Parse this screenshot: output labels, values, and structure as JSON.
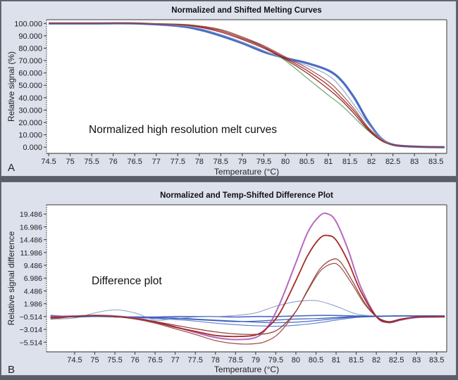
{
  "chart_data": [
    {
      "panel_label": "A",
      "type": "line",
      "title": "Normalized and Shifted Melting Curves",
      "xlabel": "Temperature (°C)",
      "ylabel": "Relative signal (%)",
      "annotation": "Normalized high resolution melt curves",
      "xlim": [
        74.45,
        83.75
      ],
      "ylim": [
        -5,
        103
      ],
      "x_ticks": [
        "74.5",
        "75",
        "75.5",
        "76",
        "76.5",
        "77",
        "77.5",
        "78",
        "78.5",
        "79",
        "79.5",
        "80",
        "80.5",
        "81",
        "81.5",
        "82",
        "82.5",
        "83",
        "83.5"
      ],
      "y_ticks": [
        "0.000",
        "10.000",
        "20.000",
        "30.000",
        "40.000",
        "50.000",
        "60.000",
        "70.000",
        "80.000",
        "90.000",
        "100.000"
      ],
      "grid": false,
      "series": [
        {
          "name": "blue group",
          "color": "#3a5fbf",
          "width": 3.2,
          "x": [
            74.5,
            75.5,
            76.5,
            77.5,
            78,
            78.5,
            79,
            79.5,
            80,
            80.5,
            81,
            81.3,
            81.6,
            81.9,
            82.2,
            82.5,
            83,
            83.7
          ],
          "y": [
            100,
            100,
            100,
            98,
            95,
            90,
            84,
            77,
            72,
            68,
            62,
            54,
            40,
            22,
            8,
            2,
            0.5,
            0
          ]
        },
        {
          "name": "light blue",
          "color": "#8fa0cc",
          "width": 1.2,
          "x": [
            74.5,
            75.5,
            76.5,
            77.5,
            78,
            78.5,
            79,
            79.5,
            80,
            80.5,
            81,
            81.3,
            81.6,
            81.9,
            82.2,
            82.5,
            83,
            83.7
          ],
          "y": [
            100,
            100,
            100,
            98.5,
            96,
            91,
            85,
            78,
            71,
            66,
            58,
            48,
            34,
            20,
            8,
            2,
            0.5,
            0
          ]
        },
        {
          "name": "green",
          "color": "#5aa05a",
          "width": 1.2,
          "x": [
            74.5,
            75.5,
            76.5,
            77.5,
            78,
            78.5,
            79,
            79.5,
            80,
            80.5,
            81,
            81.3,
            81.6,
            81.9,
            82.2,
            82.5,
            83,
            83.7
          ],
          "y": [
            100,
            100,
            100,
            99.5,
            98,
            95,
            89,
            81,
            70,
            56,
            42,
            34,
            24,
            14,
            6,
            2,
            0.5,
            0
          ]
        },
        {
          "name": "dark red 1",
          "color": "#8b1a1a",
          "width": 1.3,
          "x": [
            74.5,
            75.5,
            76.5,
            77.5,
            78,
            78.5,
            79,
            79.5,
            80,
            80.5,
            81,
            81.3,
            81.6,
            81.9,
            82.2,
            82.5,
            83,
            83.7
          ],
          "y": [
            100,
            100,
            100,
            99,
            97,
            93,
            87,
            80,
            71,
            60,
            47,
            38,
            27,
            15,
            6,
            2,
            0.5,
            0
          ]
        },
        {
          "name": "dark red 2",
          "color": "#a02020",
          "width": 1.3,
          "x": [
            74.5,
            75.5,
            76.5,
            77.5,
            78,
            78.5,
            79,
            79.5,
            80,
            80.5,
            81,
            81.3,
            81.6,
            81.9,
            82.2,
            82.5,
            83,
            83.7
          ],
          "y": [
            100,
            100,
            100,
            99,
            97.5,
            94,
            88,
            81,
            72,
            62,
            50,
            40,
            29,
            16,
            6,
            2,
            0.5,
            0
          ]
        },
        {
          "name": "brown red",
          "color": "#9a4a40",
          "width": 1.2,
          "x": [
            74.5,
            75.5,
            76.5,
            77.5,
            78,
            78.5,
            79,
            79.5,
            80,
            80.5,
            81,
            81.3,
            81.6,
            81.9,
            82.2,
            82.5,
            83,
            83.7
          ],
          "y": [
            100,
            100,
            100,
            99.3,
            98,
            95,
            89,
            82,
            73,
            64,
            53,
            43,
            31,
            17,
            7,
            2,
            0.5,
            0
          ]
        }
      ]
    },
    {
      "panel_label": "B",
      "type": "line",
      "title": "Normalized and Temp-Shifted Difference Plot",
      "xlabel": "Temperature (°C)",
      "ylabel": "Relative signal difference",
      "annotation": "Difference plot",
      "xlim": [
        73.8,
        83.75
      ],
      "ylim": [
        -7.4,
        21.3
      ],
      "x_ticks": [
        "74.5",
        "75",
        "75.5",
        "76",
        "76.5",
        "77",
        "77.5",
        "78",
        "78.5",
        "79",
        "79.5",
        "80",
        "80.5",
        "81",
        "81.5",
        "82",
        "82.5",
        "83",
        "83.5"
      ],
      "y_ticks": [
        "-5.514",
        "-3.014",
        "-0.514",
        "1.986",
        "4.486",
        "6.986",
        "9.486",
        "11.986",
        "14.486",
        "16.986",
        "19.486"
      ],
      "grid": false,
      "series": [
        {
          "name": "blue 1",
          "color": "#3a5fbf",
          "width": 1.6,
          "x": [
            73.9,
            74.5,
            75,
            75.5,
            76,
            76.5,
            77,
            77.5,
            78,
            78.5,
            79,
            79.5,
            80,
            80.5,
            81,
            81.5,
            82,
            82.5,
            83,
            83.7
          ],
          "y": [
            -0.3,
            -0.5,
            -0.3,
            -0.5,
            -0.6,
            -0.6,
            -0.5,
            -0.5,
            -0.5,
            -0.6,
            -0.5,
            -0.5,
            -0.4,
            -0.3,
            -0.3,
            -0.4,
            -0.4,
            -0.4,
            -0.4,
            -0.4
          ]
        },
        {
          "name": "blue 2",
          "color": "#4a6cc8",
          "width": 1.4,
          "x": [
            73.9,
            74.5,
            75,
            75.5,
            76,
            76.5,
            77,
            77.5,
            78,
            78.5,
            79,
            79.5,
            80,
            80.5,
            81,
            81.5,
            82,
            82.5,
            83,
            83.7
          ],
          "y": [
            -0.4,
            -0.5,
            -0.4,
            -0.6,
            -0.7,
            -0.8,
            -0.8,
            -1.0,
            -1.2,
            -1.4,
            -1.6,
            -1.7,
            -1.6,
            -1.3,
            -0.9,
            -0.6,
            -0.5,
            -0.4,
            -0.4,
            -0.4
          ]
        },
        {
          "name": "blue 3",
          "color": "#5a7ad0",
          "width": 1.2,
          "x": [
            73.9,
            74.5,
            75,
            75.5,
            76,
            76.5,
            77,
            77.5,
            78,
            78.5,
            79,
            79.5,
            80,
            80.5,
            81,
            81.5,
            82,
            82.5,
            83,
            83.7
          ],
          "y": [
            -0.5,
            -0.5,
            -0.5,
            -0.6,
            -0.7,
            -0.9,
            -1.1,
            -1.4,
            -1.8,
            -2.1,
            -2.3,
            -2.4,
            -2.2,
            -1.8,
            -1.2,
            -0.7,
            -0.5,
            -0.4,
            -0.4,
            -0.4
          ]
        },
        {
          "name": "grey blue hump",
          "color": "#8fa0cc",
          "width": 1.2,
          "x": [
            73.9,
            74.5,
            75,
            75.5,
            76,
            76.5,
            77,
            77.5,
            78,
            78.5,
            79,
            79.5,
            80,
            80.5,
            81,
            81.5,
            82,
            82.5,
            83,
            83.7
          ],
          "y": [
            -1.0,
            -0.8,
            0.2,
            0.8,
            0.2,
            -1.2,
            -0.9,
            -0.6,
            -0.5,
            -0.3,
            0.2,
            1.5,
            2.4,
            2.6,
            1.5,
            0.0,
            -0.4,
            -0.4,
            -0.4,
            -0.4
          ]
        },
        {
          "name": "blue 4",
          "color": "#2e50b0",
          "width": 1.2,
          "x": [
            73.9,
            74.5,
            75,
            75.5,
            76,
            76.5,
            77,
            77.5,
            78,
            78.5,
            79,
            79.5,
            80,
            80.5,
            81,
            81.5,
            82,
            82.5,
            83,
            83.7
          ],
          "y": [
            -0.6,
            -0.6,
            -0.5,
            -0.5,
            -0.6,
            -0.7,
            -0.9,
            -1.1,
            -1.3,
            -1.5,
            -1.4,
            -1.2,
            -1.0,
            -0.9,
            -0.7,
            -0.5,
            -0.5,
            -0.4,
            -0.4,
            -0.4
          ]
        },
        {
          "name": "magenta pair",
          "color": "#b05cb8",
          "width": 2.0,
          "x": [
            73.9,
            74.5,
            75,
            75.5,
            76,
            76.5,
            77,
            77.5,
            78,
            78.5,
            79,
            79.3,
            79.6,
            80,
            80.3,
            80.6,
            80.8,
            81,
            81.3,
            81.6,
            82,
            82.3,
            82.6,
            83,
            83.7
          ],
          "y": [
            -0.5,
            -0.4,
            -0.3,
            -0.4,
            -0.8,
            -1.5,
            -2.5,
            -3.6,
            -4.6,
            -5.0,
            -4.6,
            -2.5,
            2.0,
            10.0,
            16.0,
            19.2,
            19.5,
            18.0,
            12.5,
            5.5,
            -0.5,
            -1.7,
            -1.2,
            -0.7,
            -0.6
          ]
        },
        {
          "name": "dark red",
          "color": "#a01818",
          "width": 1.8,
          "x": [
            73.9,
            74.5,
            75,
            75.5,
            76,
            76.5,
            77,
            77.5,
            78,
            78.5,
            79,
            79.3,
            79.6,
            80,
            80.3,
            80.6,
            80.8,
            81,
            81.3,
            81.6,
            82,
            82.3,
            82.6,
            83,
            83.7
          ],
          "y": [
            -0.7,
            -0.5,
            -0.3,
            -0.5,
            -0.9,
            -1.6,
            -2.6,
            -3.4,
            -4.2,
            -4.4,
            -4.1,
            -2.6,
            0.2,
            6.5,
            11.5,
            14.8,
            15.3,
            14.4,
            10.2,
            4.6,
            -0.5,
            -1.6,
            -1.1,
            -0.6,
            -0.5
          ]
        },
        {
          "name": "brown 1",
          "color": "#9a4a40",
          "width": 1.3,
          "x": [
            73.9,
            74.5,
            75,
            75.5,
            76,
            76.5,
            77,
            77.5,
            78,
            78.5,
            79,
            79.3,
            79.6,
            80,
            80.3,
            80.6,
            80.9,
            81.1,
            81.4,
            81.7,
            82,
            82.3,
            82.6,
            83,
            83.7
          ],
          "y": [
            -1.0,
            -0.5,
            -0.3,
            -0.5,
            -1.0,
            -1.8,
            -2.9,
            -4.0,
            -5.2,
            -5.8,
            -5.8,
            -5.2,
            -3.6,
            0.5,
            4.6,
            8.3,
            9.8,
            9.2,
            5.8,
            2.0,
            -0.5,
            -1.5,
            -1.0,
            -0.6,
            -0.5
          ]
        },
        {
          "name": "brown 2",
          "color": "#8b3a30",
          "width": 1.3,
          "x": [
            73.9,
            74.5,
            75,
            75.5,
            76,
            76.5,
            77,
            77.5,
            78,
            78.5,
            79,
            79.3,
            79.6,
            80,
            80.3,
            80.6,
            80.9,
            81.1,
            81.4,
            81.7,
            82,
            82.3,
            82.6,
            83,
            83.7
          ],
          "y": [
            -0.8,
            -0.5,
            -0.3,
            -0.5,
            -0.9,
            -1.5,
            -2.2,
            -2.9,
            -3.5,
            -3.9,
            -4.0,
            -3.8,
            -2.8,
            0.5,
            4.8,
            8.8,
            10.6,
            10.2,
            6.5,
            2.3,
            -0.5,
            -1.5,
            -1.0,
            -0.6,
            -0.5
          ]
        }
      ]
    }
  ]
}
